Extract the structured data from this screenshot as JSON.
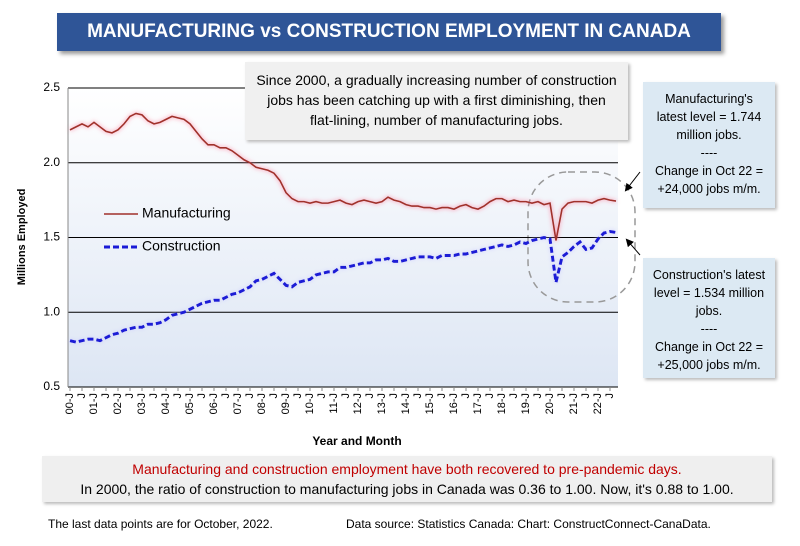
{
  "chart_data": {
    "type": "line",
    "title": "MANUFACTURING vs CONSTRUCTION EMPLOYMENT IN CANADA",
    "y_label": "Millions Employed",
    "x_label": "Year and Month",
    "annotation": "Since 2000, a gradually increasing number of construction jobs has been catching up with a first diminishing, then flat-lining, number of manufacturing jobs.",
    "manufacturing_note": [
      "Manufacturing's latest level = 1.744 million jobs.",
      "----",
      "Change in Oct 22 = +24,000 jobs m/m."
    ],
    "construction_note": [
      "Construction's latest level = 1.534 million jobs.",
      "----",
      "Change in Oct 22 = +25,000 jobs m/m."
    ],
    "summary": [
      "Manufacturing and construction employment have both recovered to pre-pandemic days.",
      "In 2000, the ratio of construction to manufacturing jobs in Canada was 0.36 to 1.00. Now, it's 0.88 to 1.00."
    ],
    "footnote": "The last data points are for October, 2022.",
    "source": "Data source: Statistics Canada: Chart: ConstructConnect-CanaData.",
    "categories": [
      "00-J",
      null,
      "J",
      null,
      "01-J",
      null,
      "J",
      null,
      "02-J",
      null,
      "J",
      null,
      "03-J",
      null,
      "J",
      null,
      "04-J",
      null,
      "J",
      null,
      "05-J",
      null,
      "J",
      null,
      "06-J",
      null,
      "J",
      null,
      "07-J",
      null,
      "J",
      null,
      "08-J",
      null,
      "J",
      null,
      "09-J",
      null,
      "J",
      null,
      "10-J",
      null,
      "J",
      null,
      "11-J",
      null,
      "J",
      null,
      "12-J",
      null,
      "J",
      null,
      "13-J",
      null,
      "J",
      null,
      "14-J",
      null,
      "J",
      null,
      "15-J",
      null,
      "J",
      null,
      "16-J",
      null,
      "J",
      null,
      "17-J",
      null,
      "J",
      null,
      "18-J",
      null,
      "J",
      null,
      "19-J",
      null,
      "J",
      null,
      "20-J",
      null,
      "J",
      null,
      "21-J",
      null,
      "J",
      null,
      "22-J",
      null,
      "J",
      null
    ],
    "series": [
      {
        "name": "Manufacturing",
        "color": "#a0302a",
        "dashed": false,
        "values": [
          2.22,
          2.24,
          2.26,
          2.24,
          2.27,
          2.24,
          2.21,
          2.2,
          2.22,
          2.26,
          2.31,
          2.33,
          2.32,
          2.28,
          2.26,
          2.27,
          2.29,
          2.31,
          2.3,
          2.29,
          2.26,
          2.21,
          2.16,
          2.12,
          2.12,
          2.1,
          2.1,
          2.08,
          2.05,
          2.02,
          2.0,
          1.97,
          1.96,
          1.95,
          1.93,
          1.88,
          1.8,
          1.76,
          1.74,
          1.74,
          1.73,
          1.74,
          1.73,
          1.73,
          1.74,
          1.75,
          1.73,
          1.72,
          1.74,
          1.75,
          1.74,
          1.73,
          1.74,
          1.77,
          1.75,
          1.74,
          1.72,
          1.71,
          1.71,
          1.7,
          1.7,
          1.69,
          1.7,
          1.7,
          1.69,
          1.71,
          1.72,
          1.7,
          1.69,
          1.71,
          1.74,
          1.76,
          1.76,
          1.74,
          1.75,
          1.74,
          1.74,
          1.73,
          1.74,
          1.72,
          1.73,
          1.48,
          1.69,
          1.73,
          1.74,
          1.74,
          1.74,
          1.73,
          1.75,
          1.76,
          1.75,
          1.744
        ]
      },
      {
        "name": "Construction",
        "color": "#1a1ad6",
        "dashed": true,
        "values": [
          0.81,
          0.8,
          0.81,
          0.82,
          0.82,
          0.81,
          0.83,
          0.85,
          0.86,
          0.88,
          0.89,
          0.9,
          0.9,
          0.92,
          0.92,
          0.93,
          0.95,
          0.98,
          0.99,
          1.0,
          1.02,
          1.04,
          1.06,
          1.07,
          1.08,
          1.08,
          1.1,
          1.12,
          1.13,
          1.15,
          1.17,
          1.21,
          1.22,
          1.24,
          1.26,
          1.22,
          1.18,
          1.17,
          1.2,
          1.21,
          1.22,
          1.25,
          1.26,
          1.27,
          1.27,
          1.3,
          1.3,
          1.31,
          1.32,
          1.33,
          1.33,
          1.35,
          1.35,
          1.36,
          1.34,
          1.34,
          1.35,
          1.36,
          1.37,
          1.37,
          1.37,
          1.36,
          1.38,
          1.38,
          1.38,
          1.39,
          1.39,
          1.4,
          1.41,
          1.42,
          1.43,
          1.44,
          1.45,
          1.44,
          1.45,
          1.47,
          1.46,
          1.48,
          1.49,
          1.5,
          1.49,
          1.2,
          1.37,
          1.4,
          1.44,
          1.47,
          1.42,
          1.43,
          1.49,
          1.53,
          1.54,
          1.534
        ]
      }
    ],
    "ylim": [
      0.5,
      2.5
    ],
    "yticks": [
      0.5,
      {
        "value": 1,
        "label": "1.0"
      },
      1.5,
      {
        "value": 2,
        "label": "2.0"
      },
      2.5
    ],
    "grid": true,
    "legend": "left"
  }
}
